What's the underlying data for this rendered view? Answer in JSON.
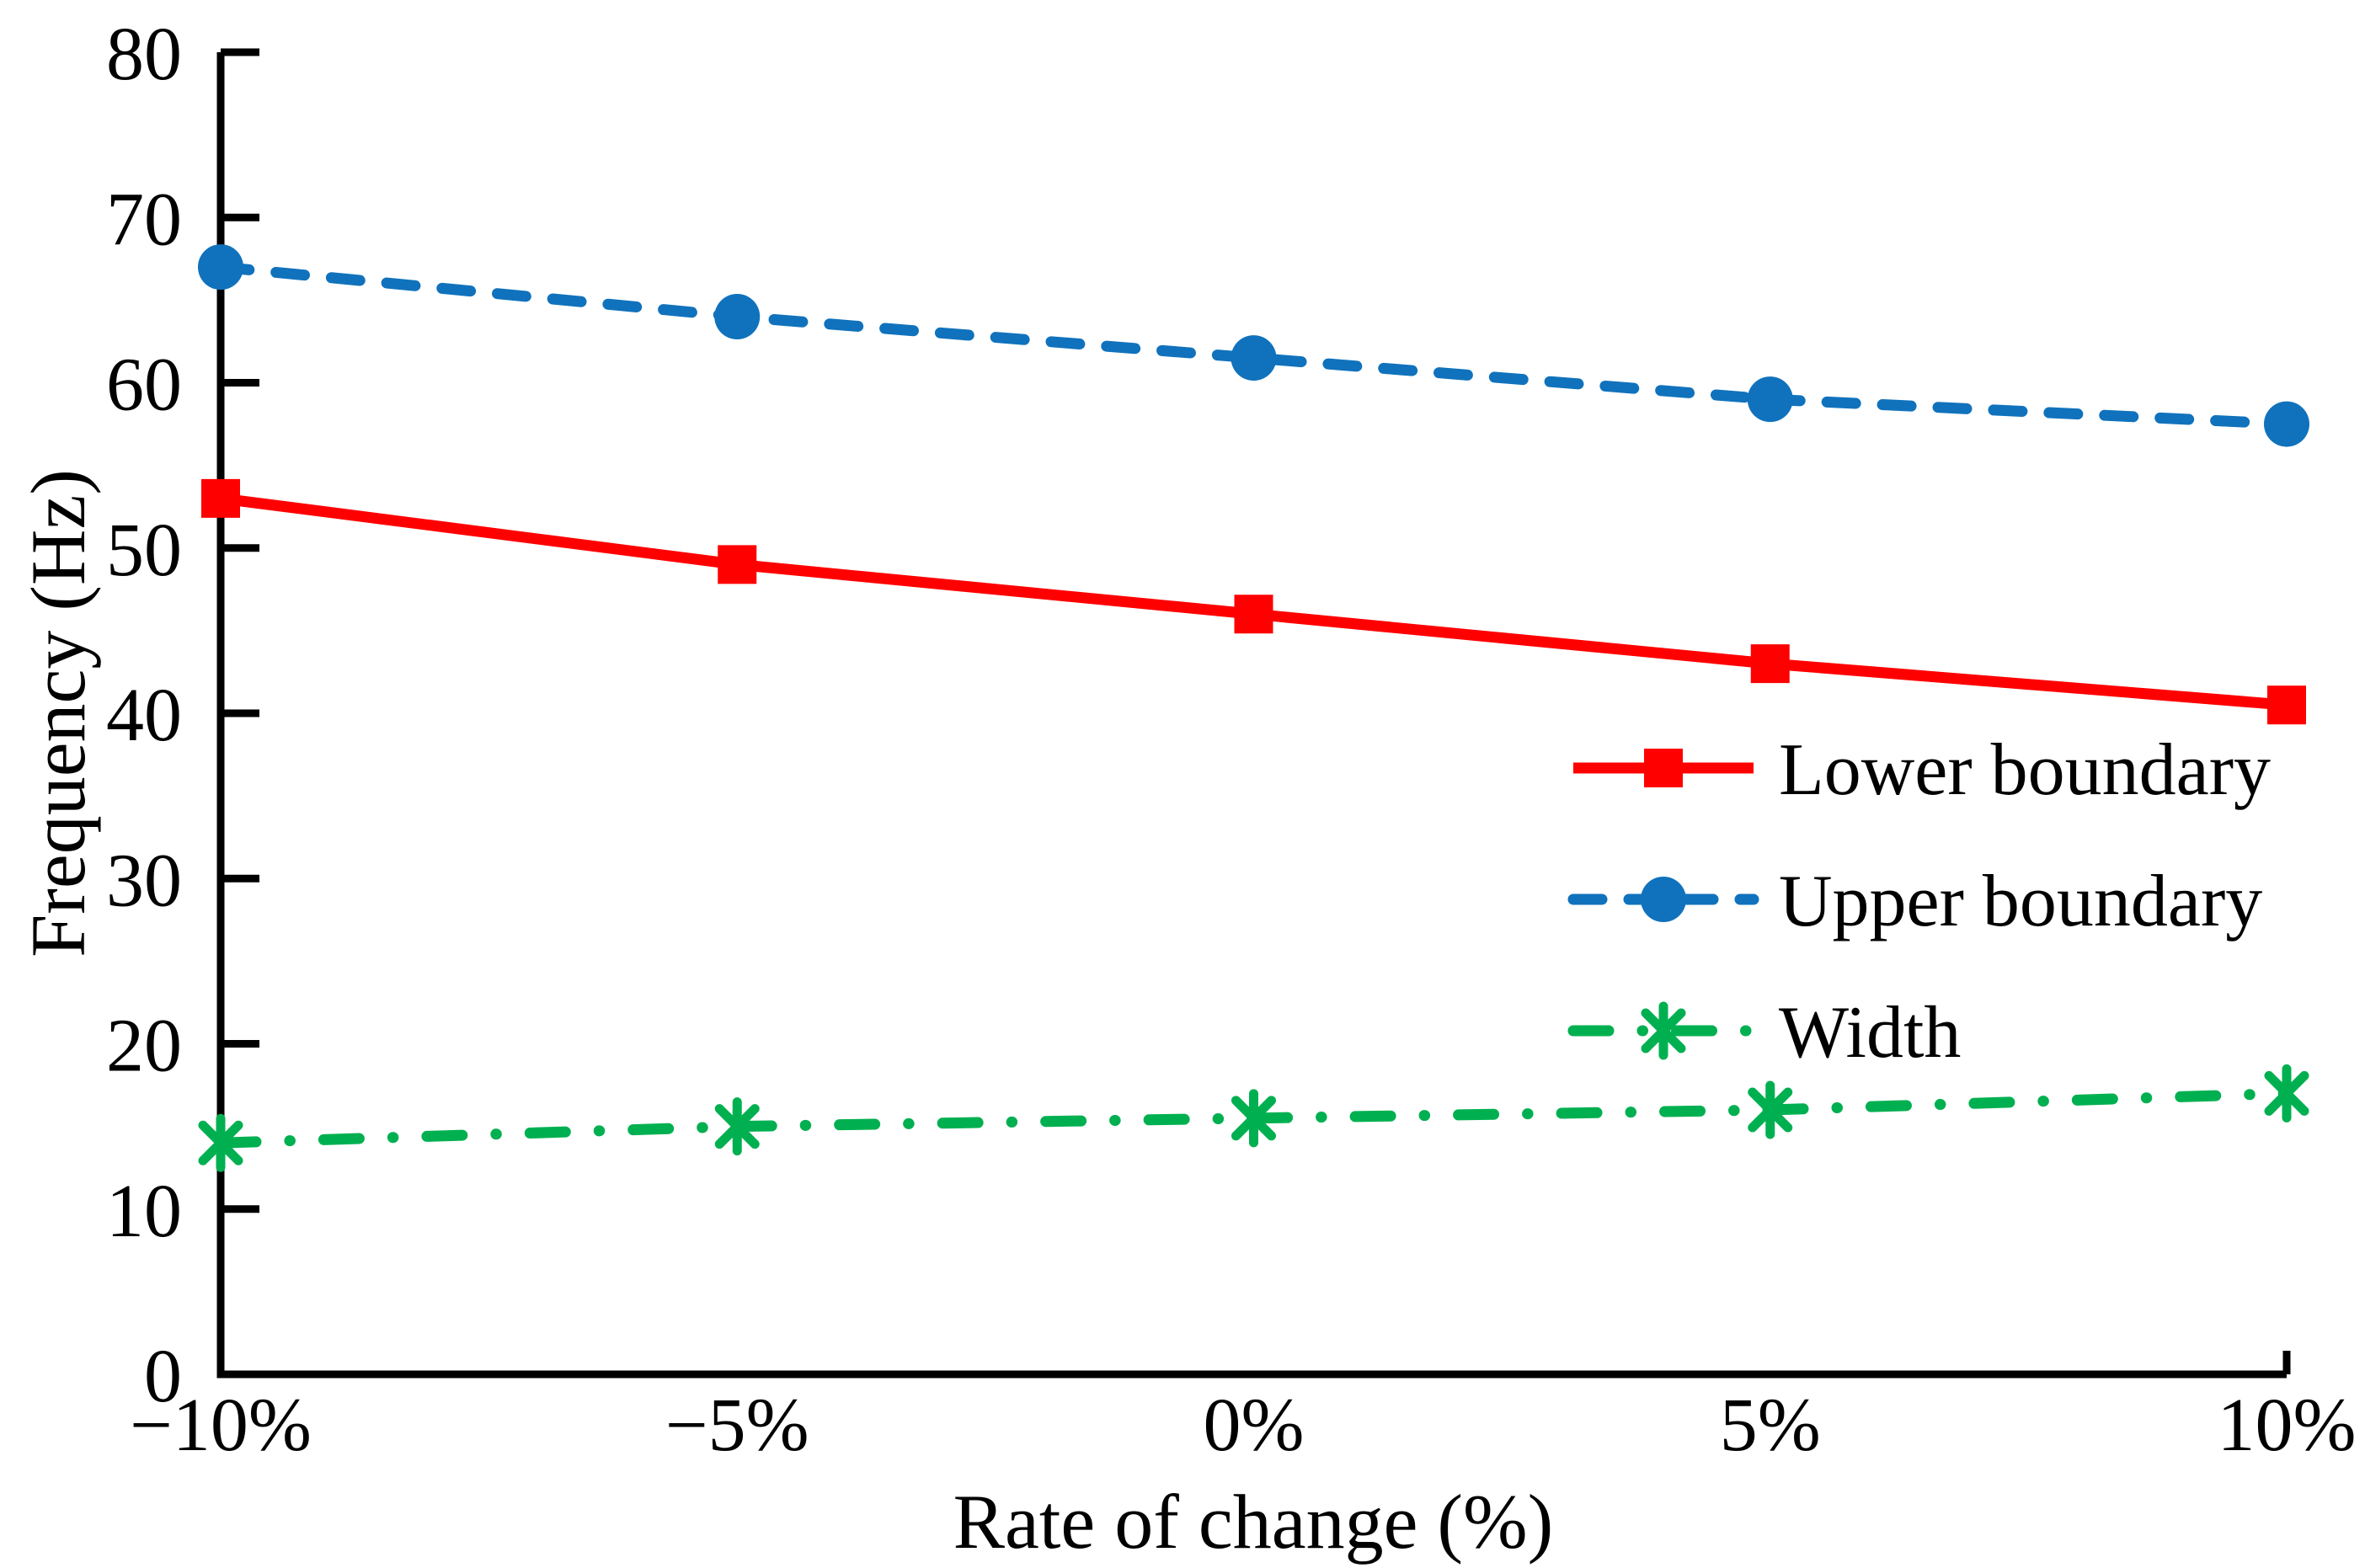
{
  "figure": {
    "background": "#FFFFFF",
    "axis_color": "#000000",
    "text_color": "#000000"
  },
  "chart_data": {
    "type": "line",
    "title": "",
    "xlabel": "Rate of change (%)",
    "ylabel": "Frequency (Hz)",
    "categories": [
      "−10%",
      "−5%",
      "0%",
      "5%",
      "10%"
    ],
    "x_values_pct": [
      -10,
      -5,
      0,
      5,
      10
    ],
    "ylim": [
      0,
      80
    ],
    "y_ticks": [
      0,
      10,
      20,
      30,
      40,
      50,
      60,
      70,
      80
    ],
    "grid": false,
    "legend_position": "inside-right",
    "series": [
      {
        "name": "Lower boundary",
        "color": "#FF0000",
        "line_style": "solid",
        "marker": "square",
        "values": [
          53,
          49,
          46,
          43,
          40.5
        ]
      },
      {
        "name": "Upper boundary",
        "color": "#1072BC",
        "line_style": "dashed",
        "marker": "circle",
        "values": [
          67,
          64,
          61.5,
          59,
          57.5
        ]
      },
      {
        "name": "Width",
        "color": "#00B050",
        "line_style": "dash-dot",
        "marker": "asterisk",
        "values": [
          14,
          15,
          15.5,
          16,
          17
        ]
      }
    ]
  }
}
